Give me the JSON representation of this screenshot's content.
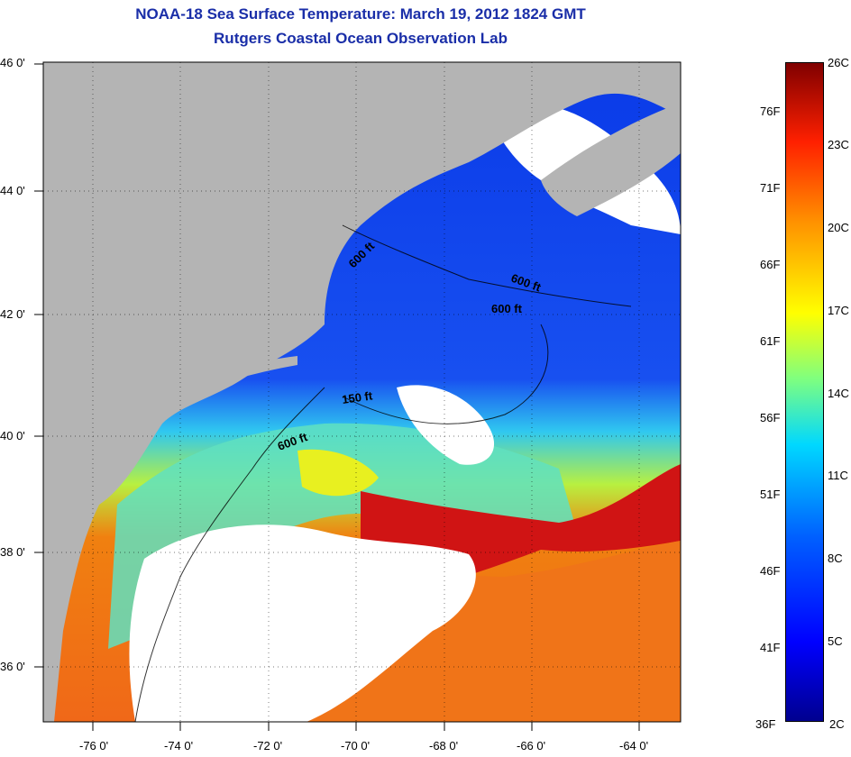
{
  "header": {
    "title": "NOAA-18 Sea Surface Temperature:  March 19, 2012 1824 GMT",
    "subtitle": "Rutgers Coastal Ocean Observation Lab"
  },
  "map": {
    "lat_labels": [
      "46 0'",
      "44 0'",
      "42 0'",
      "40 0'",
      "38 0'",
      "36 0'"
    ],
    "lon_labels": [
      "-76 0'",
      "-74 0'",
      "-72 0'",
      "-70 0'",
      "-68 0'",
      "-66 0'",
      "-64 0'"
    ],
    "contour_labels": [
      "600 ft",
      "600 ft",
      "600 ft",
      "150 ft",
      "600 ft"
    ],
    "colors": {
      "land": "#b4b4b4",
      "cloud": "#ffffff",
      "cold_water": "#1040e0",
      "warm_water": "#f07010",
      "gulf_stream": "#c81010"
    }
  },
  "colorbar": {
    "celsius_labels": [
      "26C",
      "23C",
      "20C",
      "17C",
      "14C",
      "11C",
      "8C",
      "5C",
      "2C"
    ],
    "fahrenheit_labels": [
      "76F",
      "71F",
      "66F",
      "61F",
      "56F",
      "51F",
      "46F",
      "41F",
      "36F"
    ]
  }
}
